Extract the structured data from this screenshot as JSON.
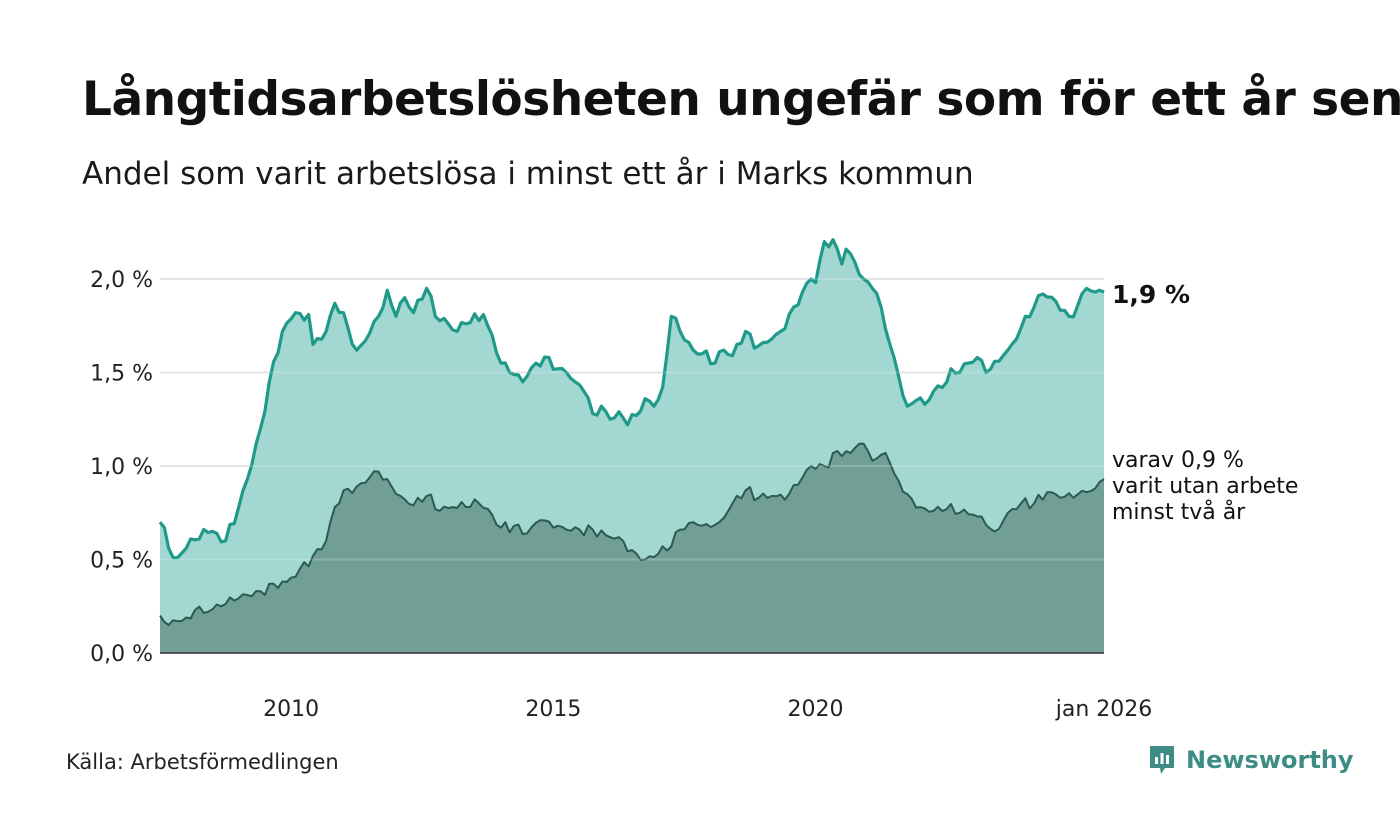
{
  "header": {
    "title": "Långtidsarbetslösheten ungefär som för ett år sen",
    "subtitle": "Andel som varit arbetslösa i minst ett år i Marks kommun"
  },
  "footer": {
    "source": "Källa: Arbetsförmedlingen",
    "brand": "Newsworthy"
  },
  "colors": {
    "upper_fill": "#a3d7d1",
    "upper_line": "#1f9a8a",
    "lower_fill": "#719f96",
    "lower_line": "#2b5a50",
    "grid": "#dedede"
  },
  "chart_data": {
    "type": "area",
    "title": "Långtidsarbetslösheten ungefär som för ett år sen",
    "subtitle": "Andel som varit arbetslösa i minst ett år i Marks kommun",
    "x_start": "2008-01",
    "x_end": "2026-01",
    "x_unit": "month",
    "ylim": [
      0,
      2.0
    ],
    "y_ticks": [
      0.0,
      0.5,
      1.0,
      1.5,
      2.0
    ],
    "y_tick_labels": [
      "0,0 %",
      "0,5 %",
      "1,0 %",
      "1,5 %",
      "2,0 %"
    ],
    "x_ticks": [
      2010,
      2015,
      2020,
      2026
    ],
    "x_tick_labels": [
      "2010",
      "2015",
      "2020",
      "jan 2026"
    ],
    "grid": true,
    "series": [
      {
        "name": "minst ett år",
        "end_label": "1,9 %",
        "anchors": [
          [
            "2008-01",
            0.7
          ],
          [
            "2008-02",
            0.67
          ],
          [
            "2008-03",
            0.56
          ],
          [
            "2008-04",
            0.51
          ],
          [
            "2008-07",
            0.56
          ],
          [
            "2008-08",
            0.61
          ],
          [
            "2008-10",
            0.61
          ],
          [
            "2008-11",
            0.66
          ],
          [
            "2009-02",
            0.64
          ],
          [
            "2009-04",
            0.6
          ],
          [
            "2009-07",
            0.78
          ],
          [
            "2009-09",
            0.93
          ],
          [
            "2009-12",
            1.2
          ],
          [
            "2010-02",
            1.45
          ],
          [
            "2010-05",
            1.72
          ],
          [
            "2010-08",
            1.82
          ],
          [
            "2010-10",
            1.78
          ],
          [
            "2010-11",
            1.81
          ],
          [
            "2010-12",
            1.65
          ],
          [
            "2011-03",
            1.72
          ],
          [
            "2011-05",
            1.87
          ],
          [
            "2011-07",
            1.82
          ],
          [
            "2011-08",
            1.74
          ],
          [
            "2011-10",
            1.62
          ],
          [
            "2011-12",
            1.67
          ],
          [
            "2012-03",
            1.8
          ],
          [
            "2012-05",
            1.94
          ],
          [
            "2012-07",
            1.8
          ],
          [
            "2012-09",
            1.9
          ],
          [
            "2012-11",
            1.82
          ],
          [
            "2013-02",
            1.95
          ],
          [
            "2013-04",
            1.8
          ],
          [
            "2013-07",
            1.76
          ],
          [
            "2013-09",
            1.72
          ],
          [
            "2013-11",
            1.76
          ],
          [
            "2014-03",
            1.81
          ],
          [
            "2014-04",
            1.75
          ],
          [
            "2014-05",
            1.7
          ],
          [
            "2014-07",
            1.55
          ],
          [
            "2014-09",
            1.5
          ],
          [
            "2014-12",
            1.45
          ],
          [
            "2015-03",
            1.55
          ],
          [
            "2015-06",
            1.58
          ],
          [
            "2015-08",
            1.52
          ],
          [
            "2015-10",
            1.5
          ],
          [
            "2015-12",
            1.45
          ],
          [
            "2016-02",
            1.4
          ],
          [
            "2016-04",
            1.28
          ],
          [
            "2016-06",
            1.32
          ],
          [
            "2016-08",
            1.25
          ],
          [
            "2016-10",
            1.29
          ],
          [
            "2016-12",
            1.22
          ],
          [
            "2017-02",
            1.27
          ],
          [
            "2017-04",
            1.36
          ],
          [
            "2017-06",
            1.32
          ],
          [
            "2017-08",
            1.42
          ],
          [
            "2017-10",
            1.8
          ],
          [
            "2017-12",
            1.72
          ],
          [
            "2018-03",
            1.62
          ],
          [
            "2018-05",
            1.6
          ],
          [
            "2018-08",
            1.55
          ],
          [
            "2018-10",
            1.62
          ],
          [
            "2018-12",
            1.59
          ],
          [
            "2019-03",
            1.72
          ],
          [
            "2019-05",
            1.63
          ],
          [
            "2019-07",
            1.66
          ],
          [
            "2019-09",
            1.68
          ],
          [
            "2019-11",
            1.72
          ],
          [
            "2020-02",
            1.85
          ],
          [
            "2020-04",
            1.93
          ],
          [
            "2020-06",
            2.0
          ],
          [
            "2020-07",
            1.98
          ],
          [
            "2020-09",
            2.2
          ],
          [
            "2020-11",
            2.21
          ],
          [
            "2021-01",
            2.08
          ],
          [
            "2021-02",
            2.16
          ],
          [
            "2021-04",
            2.09
          ],
          [
            "2021-06",
            2.0
          ],
          [
            "2021-08",
            1.95
          ],
          [
            "2021-10",
            1.85
          ],
          [
            "2021-12",
            1.65
          ],
          [
            "2022-02",
            1.48
          ],
          [
            "2022-04",
            1.32
          ],
          [
            "2022-06",
            1.35
          ],
          [
            "2022-08",
            1.33
          ],
          [
            "2022-10",
            1.4
          ],
          [
            "2022-12",
            1.42
          ],
          [
            "2023-02",
            1.52
          ],
          [
            "2023-04",
            1.5
          ],
          [
            "2023-06",
            1.55
          ],
          [
            "2023-08",
            1.58
          ],
          [
            "2023-10",
            1.5
          ],
          [
            "2023-12",
            1.56
          ],
          [
            "2024-03",
            1.62
          ],
          [
            "2024-05",
            1.68
          ],
          [
            "2024-07",
            1.8
          ],
          [
            "2024-09",
            1.85
          ],
          [
            "2024-11",
            1.92
          ],
          [
            "2025-02",
            1.88
          ],
          [
            "2025-05",
            1.8
          ],
          [
            "2025-07",
            1.86
          ],
          [
            "2025-09",
            1.95
          ],
          [
            "2025-11",
            1.93
          ],
          [
            "2026-01",
            1.93
          ]
        ]
      },
      {
        "name": "varav minst två år",
        "end_label": [
          "varav 0,9 %",
          "varit utan arbete",
          "minst två år"
        ],
        "anchors": [
          [
            "2008-01",
            0.2
          ],
          [
            "2008-03",
            0.15
          ],
          [
            "2008-05",
            0.17
          ],
          [
            "2008-07",
            0.19
          ],
          [
            "2008-09",
            0.23
          ],
          [
            "2008-12",
            0.22
          ],
          [
            "2009-03",
            0.25
          ],
          [
            "2009-06",
            0.28
          ],
          [
            "2009-09",
            0.31
          ],
          [
            "2009-12",
            0.33
          ],
          [
            "2010-03",
            0.37
          ],
          [
            "2010-06",
            0.38
          ],
          [
            "2010-09",
            0.45
          ],
          [
            "2010-12",
            0.52
          ],
          [
            "2011-03",
            0.6
          ],
          [
            "2011-05",
            0.78
          ],
          [
            "2011-07",
            0.87
          ],
          [
            "2011-10",
            0.89
          ],
          [
            "2012-01",
            0.94
          ],
          [
            "2012-03",
            0.97
          ],
          [
            "2012-05",
            0.93
          ],
          [
            "2012-08",
            0.84
          ],
          [
            "2012-11",
            0.79
          ],
          [
            "2013-02",
            0.84
          ],
          [
            "2013-05",
            0.76
          ],
          [
            "2013-08",
            0.78
          ],
          [
            "2013-11",
            0.78
          ],
          [
            "2014-02",
            0.8
          ],
          [
            "2014-05",
            0.74
          ],
          [
            "2014-07",
            0.67
          ],
          [
            "2014-10",
            0.68
          ],
          [
            "2015-01",
            0.64
          ],
          [
            "2015-04",
            0.71
          ],
          [
            "2015-07",
            0.67
          ],
          [
            "2015-10",
            0.66
          ],
          [
            "2016-01",
            0.66
          ],
          [
            "2016-04",
            0.66
          ],
          [
            "2016-07",
            0.63
          ],
          [
            "2016-10",
            0.62
          ],
          [
            "2017-01",
            0.55
          ],
          [
            "2017-04",
            0.5
          ],
          [
            "2017-07",
            0.53
          ],
          [
            "2017-10",
            0.57
          ],
          [
            "2017-12",
            0.66
          ],
          [
            "2018-03",
            0.7
          ],
          [
            "2018-06",
            0.69
          ],
          [
            "2018-09",
            0.7
          ],
          [
            "2018-12",
            0.8
          ],
          [
            "2019-03",
            0.87
          ],
          [
            "2019-06",
            0.83
          ],
          [
            "2019-09",
            0.84
          ],
          [
            "2019-12",
            0.82
          ],
          [
            "2020-03",
            0.9
          ],
          [
            "2020-06",
            1.0
          ],
          [
            "2020-09",
            1.0
          ],
          [
            "2020-12",
            1.08
          ],
          [
            "2021-03",
            1.07
          ],
          [
            "2021-05",
            1.12
          ],
          [
            "2021-07",
            1.08
          ],
          [
            "2021-09",
            1.04
          ],
          [
            "2021-11",
            1.07
          ],
          [
            "2022-01",
            0.96
          ],
          [
            "2022-04",
            0.85
          ],
          [
            "2022-07",
            0.78
          ],
          [
            "2022-10",
            0.76
          ],
          [
            "2023-01",
            0.77
          ],
          [
            "2023-04",
            0.75
          ],
          [
            "2023-07",
            0.74
          ],
          [
            "2023-09",
            0.73
          ],
          [
            "2023-12",
            0.65
          ],
          [
            "2024-03",
            0.75
          ],
          [
            "2024-06",
            0.8
          ],
          [
            "2024-09",
            0.8
          ],
          [
            "2024-12",
            0.86
          ],
          [
            "2025-03",
            0.83
          ],
          [
            "2025-06",
            0.83
          ],
          [
            "2025-09",
            0.86
          ],
          [
            "2025-11",
            0.88
          ],
          [
            "2026-01",
            0.93
          ]
        ]
      }
    ]
  }
}
